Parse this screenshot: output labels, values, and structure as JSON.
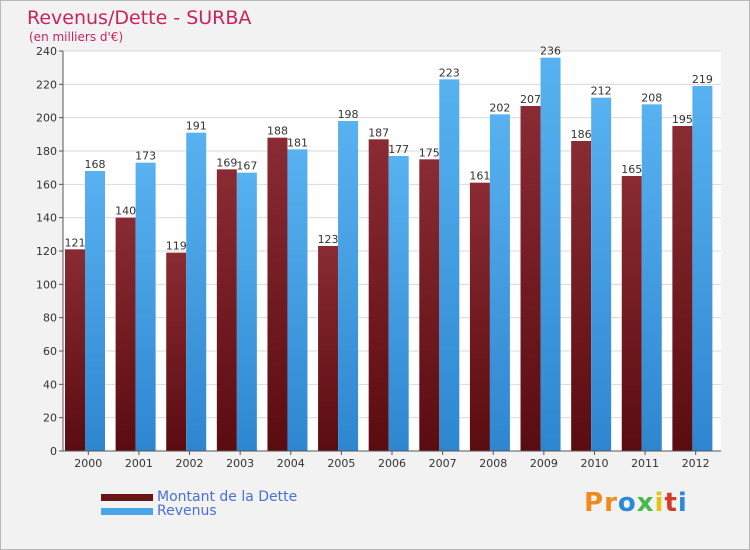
{
  "chart_data": {
    "type": "bar",
    "title": "Revenus/Dette - SURBA",
    "subtitle": "(en milliers d'€)",
    "categories": [
      "2000",
      "2001",
      "2002",
      "2003",
      "2004",
      "2005",
      "2006",
      "2007",
      "2008",
      "2009",
      "2010",
      "2011",
      "2012"
    ],
    "series": [
      {
        "name": "Montant de la Dette",
        "color": "#7a1e24",
        "values": [
          121,
          140,
          119,
          169,
          188,
          123,
          187,
          175,
          161,
          207,
          186,
          165,
          195
        ]
      },
      {
        "name": "Revenus",
        "color": "#4ba6e8",
        "values": [
          168,
          173,
          191,
          167,
          181,
          198,
          177,
          223,
          202,
          236,
          212,
          208,
          219
        ]
      }
    ],
    "ylim": [
      0,
      240
    ],
    "yticks": [
      0,
      20,
      40,
      60,
      80,
      100,
      120,
      140,
      160,
      180,
      200,
      220,
      240
    ],
    "grid": true,
    "legend_position": "bottom-left"
  },
  "logo": {
    "text": "Proxiti",
    "letters": [
      "P",
      "r",
      "o",
      "x",
      "i",
      "t",
      "i"
    ],
    "colors": [
      "#f08a1c",
      "#f08a1c",
      "#2a8ad8",
      "#4bb84b",
      "#e8c010",
      "#d83a2a",
      "#2a8ad8"
    ]
  }
}
